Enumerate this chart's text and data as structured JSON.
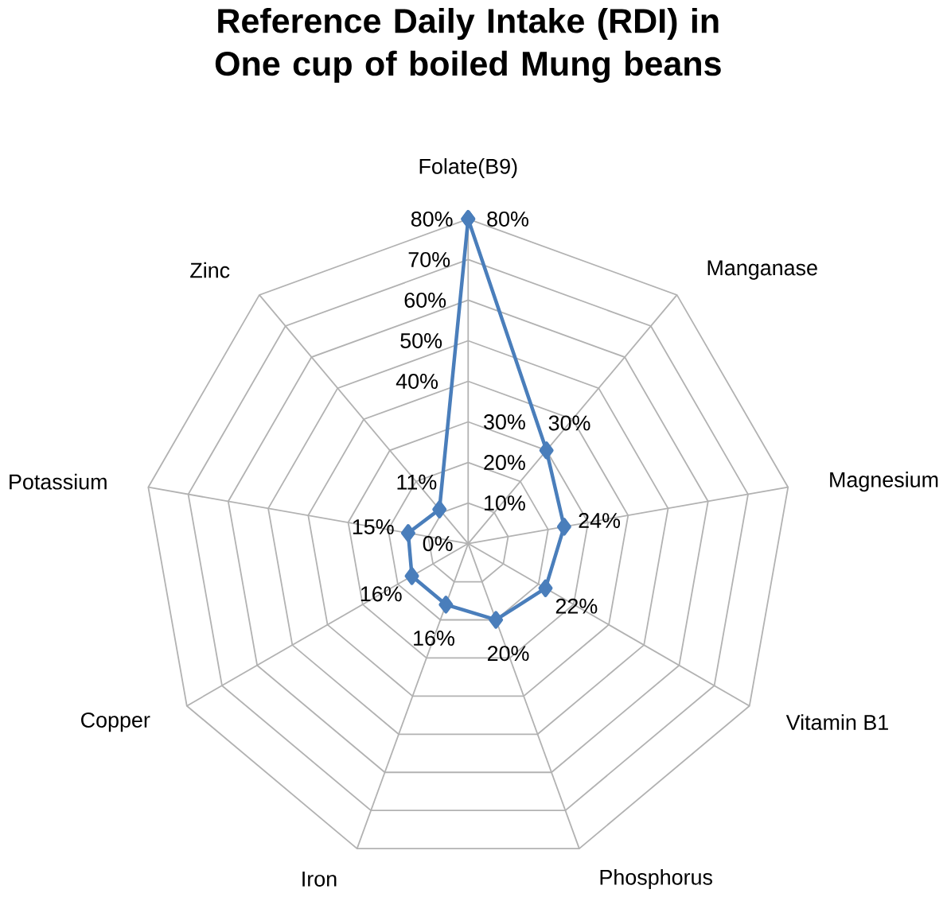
{
  "chart_data": {
    "type": "radar",
    "title": "Reference Daily Intake (RDI) in One cup of boiled Mung beans",
    "categories": [
      "Folate(B9)",
      "Manganase",
      "Magnesium",
      "Vitamin B1",
      "Phosphorus",
      "Iron",
      "Copper",
      "Potassium",
      "Zinc"
    ],
    "series": [
      {
        "color": "#4a7ebb",
        "values": [
          80,
          30,
          24,
          22,
          20,
          16,
          16,
          15,
          11
        ],
        "value_labels": [
          "80%",
          "30%",
          "24%",
          "22%",
          "20%",
          "16%",
          "16%",
          "15%",
          "11%"
        ]
      }
    ],
    "ylim": [
      0,
      80
    ],
    "yticks": [
      {
        "value": 0,
        "label": "0%"
      },
      {
        "value": 10,
        "label": "10%"
      },
      {
        "value": 20,
        "label": "20%"
      },
      {
        "value": 30,
        "label": "30%"
      },
      {
        "value": 40,
        "label": "40%"
      },
      {
        "value": 50,
        "label": "50%"
      },
      {
        "value": 60,
        "label": "60%"
      },
      {
        "value": 70,
        "label": "70%"
      },
      {
        "value": 80,
        "label": "80%"
      }
    ],
    "grid": true,
    "marker": "diamond"
  }
}
